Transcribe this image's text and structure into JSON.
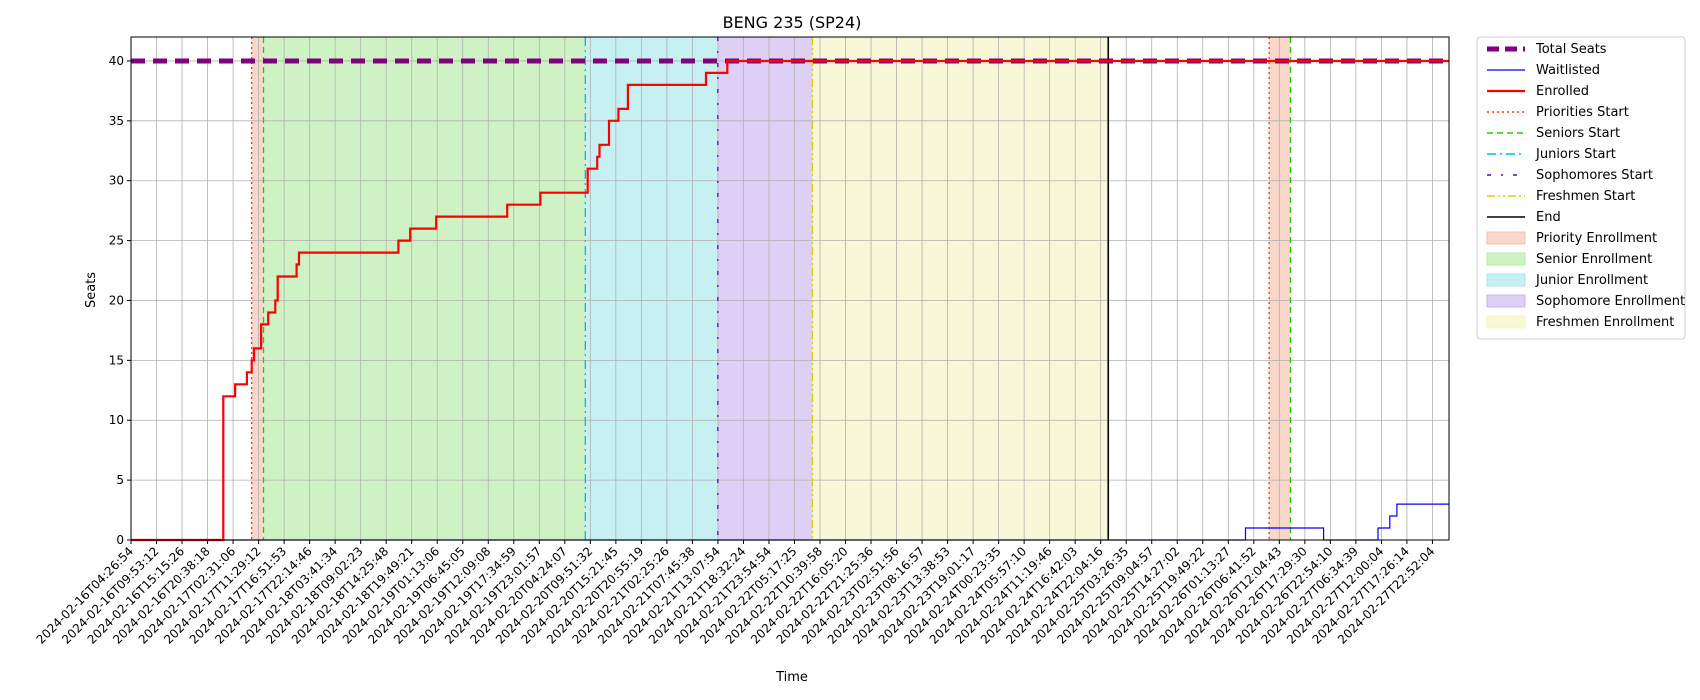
{
  "chart_data": {
    "type": "line",
    "title": "BENG 235 (SP24)",
    "xlabel": "Time",
    "ylabel": "Seats",
    "ylim": [
      0,
      42
    ],
    "yticks": [
      0,
      5,
      10,
      15,
      20,
      25,
      30,
      35,
      40
    ],
    "grid": true,
    "legend_position": "outside-right",
    "xtick_labels": [
      "2024-02-16T04:26:54",
      "2024-02-16T09:53:12",
      "2024-02-16T15:15:26",
      "2024-02-16T20:38:18",
      "2024-02-17T02:31:06",
      "2024-02-17T11:29:12",
      "2024-02-17T16:51:53",
      "2024-02-17T22:14:46",
      "2024-02-18T03:41:34",
      "2024-02-18T09:02:23",
      "2024-02-18T14:25:48",
      "2024-02-18T19:49:21",
      "2024-02-19T01:13:06",
      "2024-02-19T06:45:05",
      "2024-02-19T12:09:08",
      "2024-02-19T17:34:59",
      "2024-02-19T23:01:57",
      "2024-02-20T04:24:07",
      "2024-02-20T09:51:32",
      "2024-02-20T15:21:45",
      "2024-02-20T20:55:19",
      "2024-02-21T02:25:26",
      "2024-02-21T07:45:38",
      "2024-02-21T13:07:54",
      "2024-02-21T18:32:24",
      "2024-02-21T23:54:54",
      "2024-02-22T05:17:25",
      "2024-02-22T10:39:58",
      "2024-02-22T16:05:20",
      "2024-02-22T21:25:36",
      "2024-02-23T02:51:56",
      "2024-02-23T08:16:57",
      "2024-02-23T13:38:53",
      "2024-02-23T19:01:17",
      "2024-02-24T00:23:35",
      "2024-02-24T05:57:10",
      "2024-02-24T11:19:46",
      "2024-02-24T16:42:03",
      "2024-02-24T22:04:16",
      "2024-02-25T03:26:35",
      "2024-02-25T09:04:57",
      "2024-02-25T14:27:02",
      "2024-02-25T19:49:22",
      "2024-02-26T01:13:27",
      "2024-02-26T06:41:52",
      "2024-02-26T12:04:43",
      "2024-02-26T17:29:30",
      "2024-02-26T22:54:10",
      "2024-02-27T06:34:39",
      "2024-02-27T12:00:04",
      "2024-02-27T17:26:14",
      "2024-02-27T22:52:04"
    ],
    "x_range": [
      0,
      55.7
    ],
    "series": [
      {
        "name": "Total Seats",
        "color": "#800080",
        "style": "thick-dashed",
        "points": [
          [
            0,
            40
          ],
          [
            55.7,
            40
          ]
        ]
      },
      {
        "name": "Waitlisted",
        "color": "#0000ff",
        "style": "solid-thin",
        "points": [
          [
            0,
            0
          ],
          [
            47.1,
            0
          ],
          [
            47.1,
            1
          ],
          [
            50.4,
            1
          ],
          [
            50.4,
            0
          ],
          [
            52.7,
            0
          ],
          [
            52.7,
            1
          ],
          [
            53.2,
            1
          ],
          [
            53.2,
            2
          ],
          [
            53.5,
            2
          ],
          [
            53.5,
            3
          ],
          [
            55.7,
            3
          ]
        ]
      },
      {
        "name": "Enrolled",
        "color": "#ff0000",
        "style": "solid-thick",
        "points": [
          [
            0,
            0
          ],
          [
            3.9,
            0
          ],
          [
            3.9,
            12
          ],
          [
            4.4,
            12
          ],
          [
            4.4,
            13
          ],
          [
            4.9,
            13
          ],
          [
            4.9,
            14
          ],
          [
            5.1,
            14
          ],
          [
            5.1,
            15
          ],
          [
            5.2,
            15
          ],
          [
            5.2,
            16
          ],
          [
            5.5,
            16
          ],
          [
            5.5,
            18
          ],
          [
            5.8,
            18
          ],
          [
            5.8,
            19
          ],
          [
            6.1,
            19
          ],
          [
            6.1,
            20
          ],
          [
            6.2,
            20
          ],
          [
            6.2,
            22
          ],
          [
            7.0,
            22
          ],
          [
            7.0,
            23
          ],
          [
            7.1,
            23
          ],
          [
            7.1,
            24
          ],
          [
            11.3,
            24
          ],
          [
            11.3,
            25
          ],
          [
            11.8,
            25
          ],
          [
            11.8,
            26
          ],
          [
            12.9,
            26
          ],
          [
            12.9,
            27
          ],
          [
            15.9,
            27
          ],
          [
            15.9,
            28
          ],
          [
            17.3,
            28
          ],
          [
            17.3,
            29
          ],
          [
            19.3,
            29
          ],
          [
            19.3,
            31
          ],
          [
            19.7,
            31
          ],
          [
            19.7,
            32
          ],
          [
            19.8,
            32
          ],
          [
            19.8,
            33
          ],
          [
            20.2,
            33
          ],
          [
            20.2,
            35
          ],
          [
            20.6,
            35
          ],
          [
            20.6,
            36
          ],
          [
            21.0,
            36
          ],
          [
            21.0,
            38
          ],
          [
            24.3,
            38
          ],
          [
            24.3,
            39
          ],
          [
            25.2,
            39
          ],
          [
            25.2,
            40
          ],
          [
            38.4,
            40
          ],
          [
            38.4,
            40
          ],
          [
            55.7,
            40
          ]
        ]
      }
    ],
    "vertical_lines": [
      {
        "name": "Priorities Start",
        "x": 5.1,
        "color": "#ff3300",
        "style": "dotted"
      },
      {
        "name": "Seniors Start",
        "x": 5.6,
        "color": "#22cc00",
        "style": "dashed"
      },
      {
        "name": "Juniors Start",
        "x": 19.2,
        "color": "#00bbcc",
        "style": "dash-dot"
      },
      {
        "name": "Sophomores Start",
        "x": 24.8,
        "color": "#5500cc",
        "style": "loose-dash-dot"
      },
      {
        "name": "Freshmen Start",
        "x": 28.8,
        "color": "#ddcc00",
        "style": "dash-dot-dot"
      },
      {
        "name": "End",
        "x": 41.3,
        "color": "#000000",
        "style": "solid"
      },
      {
        "name": "",
        "x": 48.1,
        "color": "#ff3300",
        "style": "dotted"
      },
      {
        "name": "",
        "x": 49.0,
        "color": "#22cc00",
        "style": "dashed"
      }
    ],
    "spans": [
      {
        "name": "Priority Enrollment",
        "x0": 5.1,
        "x1": 5.6,
        "color": "#f4b8a0"
      },
      {
        "name": "Senior Enrollment",
        "x0": 5.6,
        "x1": 19.2,
        "color": "#a8e896"
      },
      {
        "name": "Junior Enrollment",
        "x0": 19.2,
        "x1": 24.8,
        "color": "#98e4e8"
      },
      {
        "name": "Sophomore Enrollment",
        "x0": 24.8,
        "x1": 28.8,
        "color": "#c2a8ec"
      },
      {
        "name": "Freshmen Enrollment",
        "x0": 28.8,
        "x1": 41.3,
        "color": "#f2f2b8"
      },
      {
        "name": "",
        "x0": 48.1,
        "x1": 49.0,
        "color": "#f4b8a0"
      }
    ],
    "legend": [
      {
        "label": "Total Seats",
        "kind": "line",
        "ref": "Total Seats"
      },
      {
        "label": "Waitlisted",
        "kind": "line",
        "ref": "Waitlisted"
      },
      {
        "label": "Enrolled",
        "kind": "line",
        "ref": "Enrolled"
      },
      {
        "label": "Priorities Start",
        "kind": "vline",
        "ref": "Priorities Start"
      },
      {
        "label": "Seniors Start",
        "kind": "vline",
        "ref": "Seniors Start"
      },
      {
        "label": "Juniors Start",
        "kind": "vline",
        "ref": "Juniors Start"
      },
      {
        "label": "Sophomores Start",
        "kind": "vline",
        "ref": "Sophomores Start"
      },
      {
        "label": "Freshmen Start",
        "kind": "vline",
        "ref": "Freshmen Start"
      },
      {
        "label": "End",
        "kind": "vline",
        "ref": "End"
      },
      {
        "label": "Priority Enrollment",
        "kind": "patch",
        "ref": "Priority Enrollment"
      },
      {
        "label": "Senior Enrollment",
        "kind": "patch",
        "ref": "Senior Enrollment"
      },
      {
        "label": "Junior Enrollment",
        "kind": "patch",
        "ref": "Junior Enrollment"
      },
      {
        "label": "Sophomore Enrollment",
        "kind": "patch",
        "ref": "Sophomore Enrollment"
      },
      {
        "label": "Freshmen Enrollment",
        "kind": "patch",
        "ref": "Freshmen Enrollment"
      }
    ]
  }
}
